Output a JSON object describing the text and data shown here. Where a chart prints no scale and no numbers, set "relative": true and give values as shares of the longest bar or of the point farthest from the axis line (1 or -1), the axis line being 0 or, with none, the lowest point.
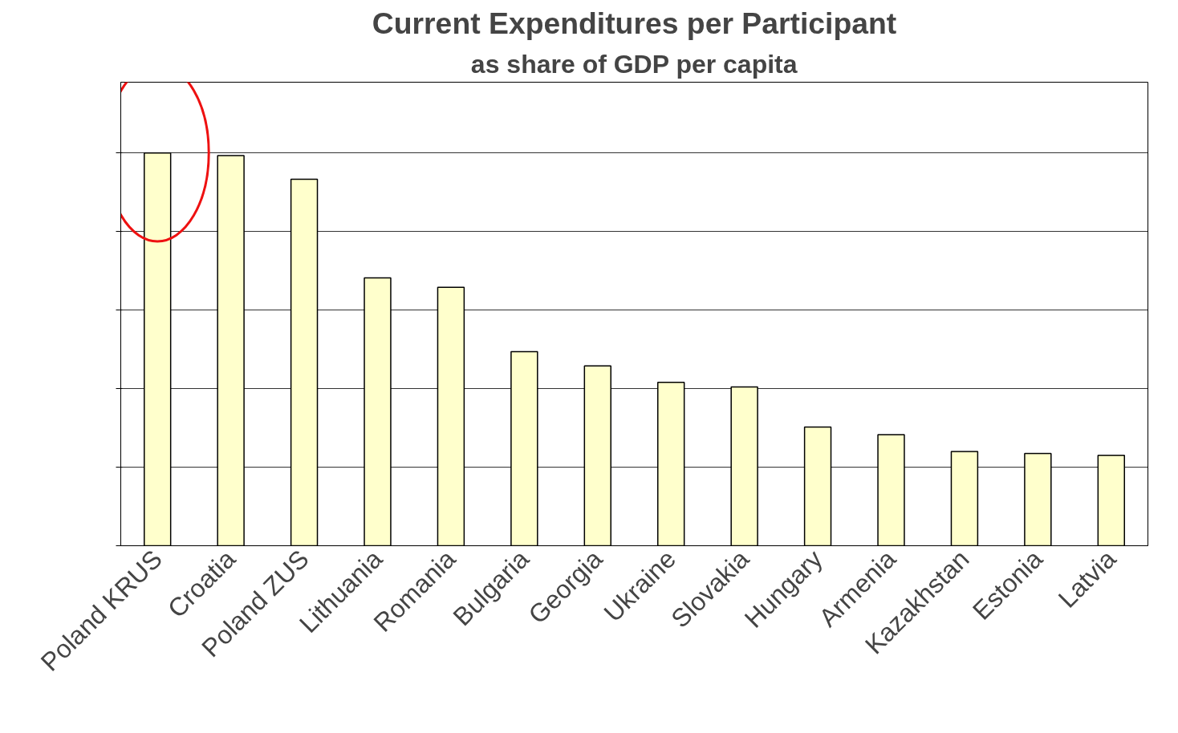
{
  "chart_data": {
    "type": "bar",
    "title": "Current Expenditures per Participant",
    "subtitle": "as share of GDP per capita",
    "categories": [
      "Poland KRUS",
      "Croatia",
      "Poland ZUS",
      "Lithuania",
      "Romania",
      "Bulgaria",
      "Georgia",
      "Ukraine",
      "Slovakia",
      "Hungary",
      "Armenia",
      "Kazakhstan",
      "Estonia",
      "Latvia"
    ],
    "values": [
      1,
      0.993,
      0.933,
      0.682,
      0.658,
      0.494,
      0.458,
      0.416,
      0.404,
      0.302,
      0.283,
      0.24,
      0.235,
      0.23
    ],
    "color": "#ffffcc",
    "relative": true,
    "grid": "y"
  }
}
